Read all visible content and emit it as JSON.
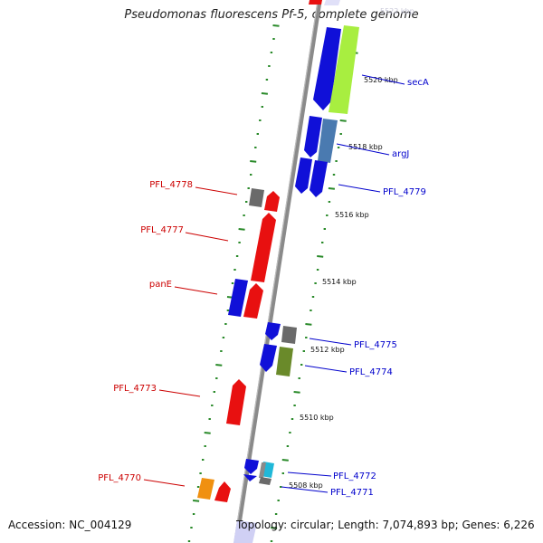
{
  "title": "Pseudomonas fluorescens Pf-5, complete genome",
  "footer": {
    "accession": "Accession: NC_004129",
    "summary": "Topology: circular; Length: 7,074,893 bp; Genes: 6,226"
  },
  "colors": {
    "backbone": "#8a8a8a",
    "ticks": "#2a8a2a",
    "forward_label": "#0000cc",
    "reverse_label": "#cc0000",
    "blue_cds": "#1010d8",
    "red_cds": "#e81010",
    "grey_cds": "#6a6a6a",
    "green_cds": "#a8ee40",
    "steel_cds": "#4a7ab0",
    "olive_cds": "#6a8a2a",
    "orange_cds": "#f09010",
    "cyan_cds": "#20b8d8"
  },
  "scale_labels": [
    {
      "text": "5522 kbp",
      "faded": true
    },
    {
      "text": "5520 kbp"
    },
    {
      "text": "5518 kbp"
    },
    {
      "text": "5516 kbp"
    },
    {
      "text": "5514 kbp"
    },
    {
      "text": "5512 kbp"
    },
    {
      "text": "5510 kbp"
    },
    {
      "text": "5508 kbp"
    }
  ],
  "gene_labels": {
    "forward": [
      "secA",
      "argJ",
      "PFL_4779",
      "PFL_4775",
      "PFL_4774",
      "PFL_4772",
      "PFL_4771"
    ],
    "reverse": [
      "PFL_4778",
      "PFL_4777",
      "panE",
      "PFL_4773",
      "PFL_4770"
    ]
  }
}
